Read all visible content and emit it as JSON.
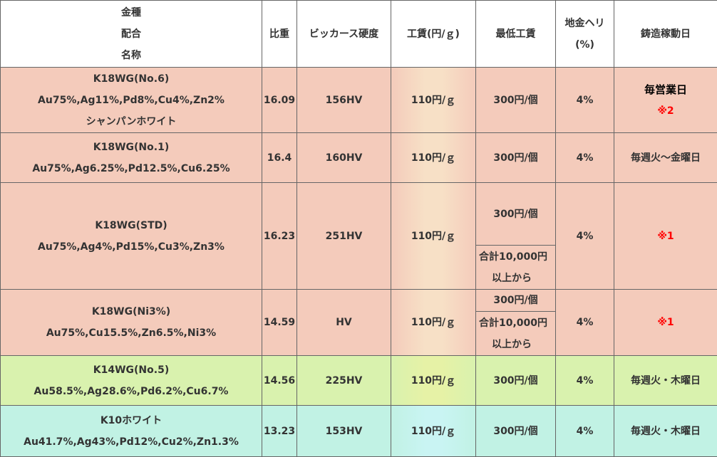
{
  "header": {
    "name_lines": [
      "金種",
      "配合",
      "名称"
    ],
    "gravity": "比重",
    "hardness": "ビッカース硬度",
    "wage": "工賃(円/ｇ)",
    "min_wage": "最低工賃",
    "loss_lines": [
      "地金ヘリ",
      "(%)"
    ],
    "casting_days": "鋳造稼動日"
  },
  "rows": [
    {
      "name": "K18WG(No.6)",
      "composition": "Au75%,Ag11%,Pd8%,Cu4%,Zn2%",
      "subname": "シャンパンホワイト",
      "gravity": "16.09",
      "hardness": "156HV",
      "wage": "110円/ｇ",
      "min_wage": "300円/個",
      "loss": "4%",
      "days_main": "毎営業日",
      "days_note": "※2"
    },
    {
      "name": "K18WG(No.1)",
      "composition": "Au75%,Ag6.25%,Pd12.5%,Cu6.25%",
      "gravity": "16.4",
      "hardness": "160HV",
      "wage": "110円/ｇ",
      "min_wage": "300円/個",
      "loss": "4%",
      "days": "毎週火～金曜日"
    },
    {
      "name": "K18WG(STD)",
      "composition": "Au75%,Ag4%,Pd15%,Cu3%,Zn3%",
      "gravity": "16.23",
      "hardness": "251HV",
      "wage": "110円/ｇ",
      "min_wage": "300円/個",
      "min_wage_note_1": "合計10,000円",
      "min_wage_note_2": "以上から",
      "loss": "4%",
      "days": "※1"
    },
    {
      "name": "K18WG(Ni3%)",
      "composition": "Au75%,Cu15.5%,Zn6.5%,Ni3%",
      "gravity": "14.59",
      "hardness": "HV",
      "wage": "110円/ｇ",
      "min_wage": "300円/個",
      "min_wage_note_1": "合計10,000円",
      "min_wage_note_2": "以上から",
      "loss": "4%",
      "days": "※1"
    },
    {
      "name": "K14WG(No.5)",
      "composition": "Au58.5%,Ag28.6%,Pd6.2%,Cu6.7%",
      "gravity": "14.56",
      "hardness": "225HV",
      "wage": "110円/ｇ",
      "min_wage": "300円/個",
      "loss": "4%",
      "days": "毎週火・木曜日"
    },
    {
      "name": "K10ホワイト",
      "composition": "Au41.7%,Ag43%,Pd12%,Cu2%,Zn1.3%",
      "gravity": "13.23",
      "hardness": "153HV",
      "wage": "110円/ｇ",
      "min_wage": "300円/個",
      "loss": "4%",
      "days": "毎週火・木曜日"
    }
  ]
}
